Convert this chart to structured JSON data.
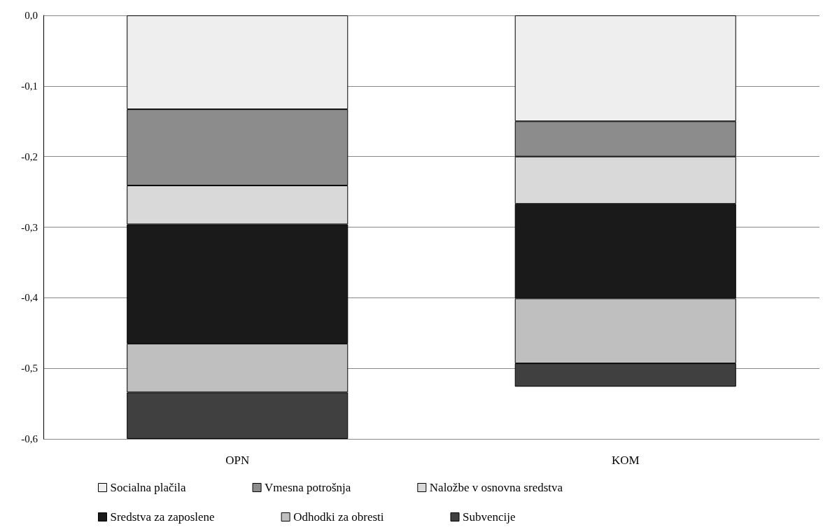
{
  "chart_data": {
    "type": "bar",
    "stacked": true,
    "categories": [
      "OPN",
      "KOM"
    ],
    "series": [
      {
        "name": "Socialna plačila",
        "color": "#eeeeee",
        "values": [
          -0.133,
          -0.15
        ]
      },
      {
        "name": "Vmesna potrošnja",
        "color": "#8c8c8c",
        "values": [
          -0.108,
          -0.05
        ]
      },
      {
        "name": "Naložbe v osnovna sredstva",
        "color": "#d9d9d9",
        "values": [
          -0.055,
          -0.067
        ]
      },
      {
        "name": "Sredstva za zaposlene",
        "color": "#1a1a1a",
        "values": [
          -0.169,
          -0.134
        ]
      },
      {
        "name": "Odhodki za obresti",
        "color": "#bfbfbf",
        "values": [
          -0.069,
          -0.092
        ]
      },
      {
        "name": "Subvencije",
        "color": "#404040",
        "values": [
          -0.066,
          -0.033
        ]
      }
    ],
    "ylim": [
      -0.6,
      0
    ],
    "yticks": [
      {
        "value": -0.6,
        "label": "-0,6"
      },
      {
        "value": -0.5,
        "label": "-0,5"
      },
      {
        "value": -0.4,
        "label": "-0,4"
      },
      {
        "value": -0.3,
        "label": "-0,3"
      },
      {
        "value": -0.2,
        "label": "-0,2"
      },
      {
        "value": -0.1,
        "label": "-0,1"
      },
      {
        "value": 0,
        "label": "0,0"
      }
    ],
    "grid": "y",
    "legend": "bottom"
  }
}
